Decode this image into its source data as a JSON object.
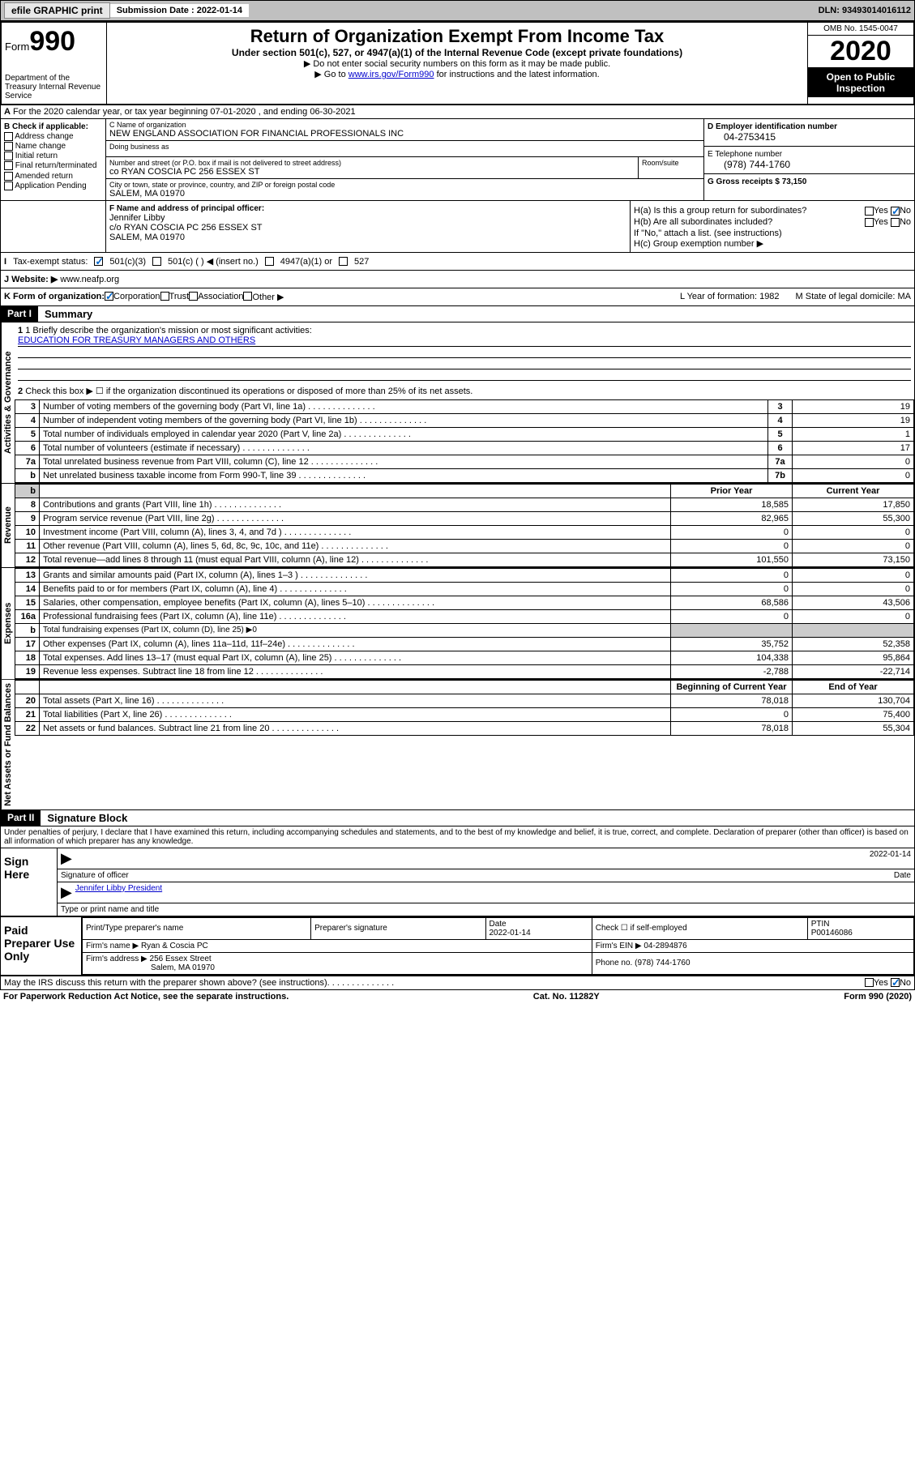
{
  "header_bar": {
    "efile_label": "efile GRAPHIC print",
    "submission_label": "Submission Date : 2022-01-14",
    "dln": "DLN: 93493014016112"
  },
  "form_header": {
    "form_label": "Form",
    "form_number": "990",
    "dept": "Department of the Treasury\nInternal Revenue Service",
    "title": "Return of Organization Exempt From Income Tax",
    "subtitle": "Under section 501(c), 527, or 4947(a)(1) of the Internal Revenue Code (except private foundations)",
    "note1": "▶ Do not enter social security numbers on this form as it may be made public.",
    "note2_pre": "▶ Go to ",
    "note2_link": "www.irs.gov/Form990",
    "note2_post": " for instructions and the latest information.",
    "omb": "OMB No. 1545-0047",
    "year": "2020",
    "open_public": "Open to Public Inspection"
  },
  "row_a": "For the 2020 calendar year, or tax year beginning 07-01-2020     , and ending 06-30-2021",
  "section_b": {
    "header": "B Check if applicable:",
    "items": [
      "Address change",
      "Name change",
      "Initial return",
      "Final return/terminated",
      "Amended return",
      "Application Pending"
    ]
  },
  "section_c": {
    "name_label": "C Name of organization",
    "name": "NEW ENGLAND ASSOCIATION FOR FINANCIAL PROFESSIONALS INC",
    "dba_label": "Doing business as",
    "street_label": "Number and street (or P.O. box if mail is not delivered to street address)",
    "street": "co RYAN COSCIA PC 256 ESSEX ST",
    "room_label": "Room/suite",
    "city_label": "City or town, state or province, country, and ZIP or foreign postal code",
    "city": "SALEM, MA  01970"
  },
  "section_d": {
    "ein_label": "D Employer identification number",
    "ein": "04-2753415",
    "phone_label": "E Telephone number",
    "phone": "(978) 744-1760",
    "gross_label": "G Gross receipts $ 73,150"
  },
  "section_f": {
    "label": "F Name and address of principal officer:",
    "name": "Jennifer Libby",
    "addr1": "c/o RYAN COSCIA PC 256 ESSEX ST",
    "addr2": "SALEM, MA  01970"
  },
  "section_h": {
    "ha_label": "H(a)  Is this a group return for subordinates?",
    "hb_label": "H(b)  Are all subordinates included?",
    "hb_note": "If \"No,\" attach a list. (see instructions)",
    "hc_label": "H(c)  Group exemption number ▶",
    "yes": "Yes",
    "no": "No"
  },
  "tax_status": {
    "label": "Tax-exempt status:",
    "opt1": "501(c)(3)",
    "opt2": "501(c) (   ) ◀ (insert no.)",
    "opt3": "4947(a)(1) or",
    "opt4": "527"
  },
  "section_i": {
    "label": "I",
    "row_label": "J    Website: ▶",
    "website": "www.neafp.org"
  },
  "section_k": {
    "label": "K Form of organization:",
    "opts": [
      "Corporation",
      "Trust",
      "Association",
      "Other ▶"
    ],
    "year_label": "L Year of formation: 1982",
    "state_label": "M State of legal domicile: MA"
  },
  "part1": {
    "header": "Part I",
    "label": "Summary",
    "line1_label": "1  Briefly describe the organization's mission or most significant activities:",
    "line1_text": "EDUCATION FOR TREASURY MANAGERS AND OTHERS",
    "line2": "Check this box ▶ ☐  if the organization discontinued its operations or disposed of more than 25% of its net assets.",
    "tabs": {
      "gov": "Activities & Governance",
      "rev": "Revenue",
      "exp": "Expenses",
      "net": "Net Assets or Fund Balances"
    },
    "governance": [
      {
        "num": "2",
        "desc": "",
        "line": "",
        "val": ""
      },
      {
        "num": "3",
        "desc": "Number of voting members of the governing body (Part VI, line 1a)",
        "line": "3",
        "val": "19"
      },
      {
        "num": "4",
        "desc": "Number of independent voting members of the governing body (Part VI, line 1b)",
        "line": "4",
        "val": "19"
      },
      {
        "num": "5",
        "desc": "Total number of individuals employed in calendar year 2020 (Part V, line 2a)",
        "line": "5",
        "val": "1"
      },
      {
        "num": "6",
        "desc": "Total number of volunteers (estimate if necessary)",
        "line": "6",
        "val": "17"
      },
      {
        "num": "7a",
        "desc": "Total unrelated business revenue from Part VIII, column (C), line 12",
        "line": "7a",
        "val": "0"
      },
      {
        "num": "b",
        "desc": "Net unrelated business taxable income from Form 990-T, line 39",
        "line": "7b",
        "val": "0"
      }
    ],
    "year_headers": {
      "prior": "Prior Year",
      "current": "Current Year"
    },
    "revenue": [
      {
        "num": "8",
        "desc": "Contributions and grants (Part VIII, line 1h)",
        "prior": "18,585",
        "current": "17,850"
      },
      {
        "num": "9",
        "desc": "Program service revenue (Part VIII, line 2g)",
        "prior": "82,965",
        "current": "55,300"
      },
      {
        "num": "10",
        "desc": "Investment income (Part VIII, column (A), lines 3, 4, and 7d )",
        "prior": "0",
        "current": "0"
      },
      {
        "num": "11",
        "desc": "Other revenue (Part VIII, column (A), lines 5, 6d, 8c, 9c, 10c, and 11e)",
        "prior": "0",
        "current": "0"
      },
      {
        "num": "12",
        "desc": "Total revenue—add lines 8 through 11 (must equal Part VIII, column (A), line 12)",
        "prior": "101,550",
        "current": "73,150"
      }
    ],
    "expenses": [
      {
        "num": "13",
        "desc": "Grants and similar amounts paid (Part IX, column (A), lines 1–3 )",
        "prior": "0",
        "current": "0"
      },
      {
        "num": "14",
        "desc": "Benefits paid to or for members (Part IX, column (A), line 4)",
        "prior": "0",
        "current": "0"
      },
      {
        "num": "15",
        "desc": "Salaries, other compensation, employee benefits (Part IX, column (A), lines 5–10)",
        "prior": "68,586",
        "current": "43,506"
      },
      {
        "num": "16a",
        "desc": "Professional fundraising fees (Part IX, column (A), line 11e)",
        "prior": "0",
        "current": "0"
      },
      {
        "num": "b",
        "desc": "Total fundraising expenses (Part IX, column (D), line 25) ▶0",
        "prior": "",
        "current": ""
      },
      {
        "num": "17",
        "desc": "Other expenses (Part IX, column (A), lines 11a–11d, 11f–24e)",
        "prior": "35,752",
        "current": "52,358"
      },
      {
        "num": "18",
        "desc": "Total expenses. Add lines 13–17 (must equal Part IX, column (A), line 25)",
        "prior": "104,338",
        "current": "95,864"
      },
      {
        "num": "19",
        "desc": "Revenue less expenses. Subtract line 18 from line 12",
        "prior": "-2,788",
        "current": "-22,714"
      }
    ],
    "net_headers": {
      "begin": "Beginning of Current Year",
      "end": "End of Year"
    },
    "netassets": [
      {
        "num": "20",
        "desc": "Total assets (Part X, line 16)",
        "prior": "78,018",
        "current": "130,704"
      },
      {
        "num": "21",
        "desc": "Total liabilities (Part X, line 26)",
        "prior": "0",
        "current": "75,400"
      },
      {
        "num": "22",
        "desc": "Net assets or fund balances. Subtract line 21 from line 20",
        "prior": "78,018",
        "current": "55,304"
      }
    ]
  },
  "part2": {
    "header": "Part II",
    "label": "Signature Block",
    "declaration": "Under penalties of perjury, I declare that I have examined this return, including accompanying schedules and statements, and to the best of my knowledge and belief, it is true, correct, and complete. Declaration of preparer (other than officer) is based on all information of which preparer has any knowledge."
  },
  "sign_here": {
    "label": "Sign Here",
    "sig_label": "Signature of officer",
    "date": "2022-01-14",
    "date_label": "Date",
    "name": "Jennifer Libby  President",
    "type_label": "Type or print name and title"
  },
  "preparer": {
    "label": "Paid Preparer Use Only",
    "print_label": "Print/Type preparer's name",
    "sig_label": "Preparer's signature",
    "date_label": "Date",
    "date": "2022-01-14",
    "check_label": "Check ☐ if self-employed",
    "ptin_label": "PTIN",
    "ptin": "P00146086",
    "firm_name_label": "Firm's name     ▶",
    "firm_name": "Ryan & Coscia PC",
    "firm_ein_label": "Firm's EIN ▶",
    "firm_ein": "04-2894876",
    "firm_addr_label": "Firm's address ▶",
    "firm_addr1": "256 Essex Street",
    "firm_addr2": "Salem, MA  01970",
    "phone_label": "Phone no.",
    "phone": "(978) 744-1760"
  },
  "discuss": {
    "text": "May the IRS discuss this return with the preparer shown above? (see instructions)",
    "yes": "Yes",
    "no": "No"
  },
  "footer": {
    "left": "For Paperwork Reduction Act Notice, see the separate instructions.",
    "center": "Cat. No. 11282Y",
    "right": "Form 990 (2020)"
  }
}
